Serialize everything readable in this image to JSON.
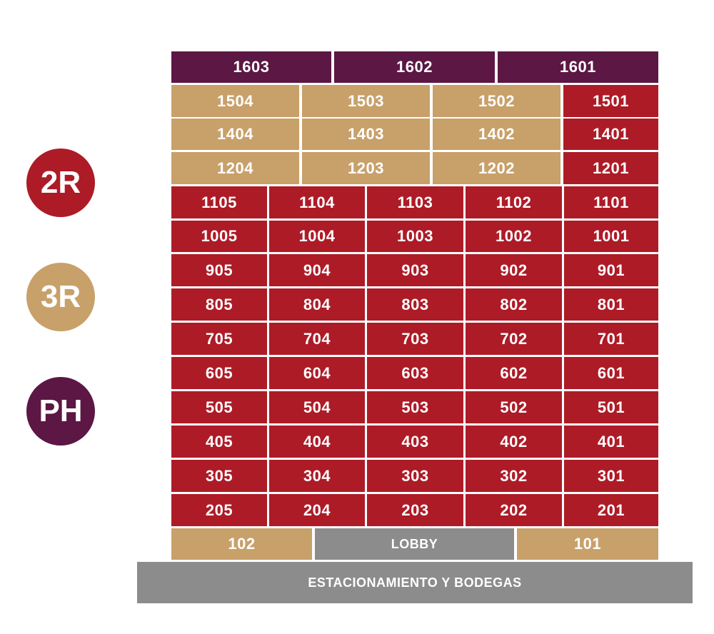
{
  "colors": {
    "2R": "#ad1b27",
    "3R": "#c8a06a",
    "PH": "#5c1744",
    "common": "#8c8c8c"
  },
  "legend": [
    {
      "label": "2R",
      "type": "2R"
    },
    {
      "label": "3R",
      "type": "3R"
    },
    {
      "label": "PH",
      "type": "PH"
    }
  ],
  "floors": [
    {
      "units": [
        {
          "label": "1603",
          "type": "PH"
        },
        {
          "label": "1602",
          "type": "PH"
        },
        {
          "label": "1601",
          "type": "PH"
        }
      ]
    },
    {
      "units": [
        {
          "label": "1504",
          "type": "3R"
        },
        {
          "label": "1503",
          "type": "3R"
        },
        {
          "label": "1502",
          "type": "3R"
        },
        {
          "label": "1501",
          "type": "2R"
        }
      ]
    },
    {
      "units": [
        {
          "label": "1404",
          "type": "3R"
        },
        {
          "label": "1403",
          "type": "3R"
        },
        {
          "label": "1402",
          "type": "3R"
        },
        {
          "label": "1401",
          "type": "2R"
        }
      ]
    },
    {
      "units": [
        {
          "label": "1204",
          "type": "3R"
        },
        {
          "label": "1203",
          "type": "3R"
        },
        {
          "label": "1202",
          "type": "3R"
        },
        {
          "label": "1201",
          "type": "2R"
        }
      ]
    },
    {
      "units": [
        {
          "label": "1105",
          "type": "2R"
        },
        {
          "label": "1104",
          "type": "2R"
        },
        {
          "label": "1103",
          "type": "2R"
        },
        {
          "label": "1102",
          "type": "2R"
        },
        {
          "label": "1101",
          "type": "2R"
        }
      ]
    },
    {
      "units": [
        {
          "label": "1005",
          "type": "2R"
        },
        {
          "label": "1004",
          "type": "2R"
        },
        {
          "label": "1003",
          "type": "2R"
        },
        {
          "label": "1002",
          "type": "2R"
        },
        {
          "label": "1001",
          "type": "2R"
        }
      ]
    },
    {
      "units": [
        {
          "label": "905",
          "type": "2R"
        },
        {
          "label": "904",
          "type": "2R"
        },
        {
          "label": "903",
          "type": "2R"
        },
        {
          "label": "902",
          "type": "2R"
        },
        {
          "label": "901",
          "type": "2R"
        }
      ]
    },
    {
      "units": [
        {
          "label": "805",
          "type": "2R"
        },
        {
          "label": "804",
          "type": "2R"
        },
        {
          "label": "803",
          "type": "2R"
        },
        {
          "label": "802",
          "type": "2R"
        },
        {
          "label": "801",
          "type": "2R"
        }
      ]
    },
    {
      "units": [
        {
          "label": "705",
          "type": "2R"
        },
        {
          "label": "704",
          "type": "2R"
        },
        {
          "label": "703",
          "type": "2R"
        },
        {
          "label": "702",
          "type": "2R"
        },
        {
          "label": "701",
          "type": "2R"
        }
      ]
    },
    {
      "units": [
        {
          "label": "605",
          "type": "2R"
        },
        {
          "label": "604",
          "type": "2R"
        },
        {
          "label": "603",
          "type": "2R"
        },
        {
          "label": "602",
          "type": "2R"
        },
        {
          "label": "601",
          "type": "2R"
        }
      ]
    },
    {
      "units": [
        {
          "label": "505",
          "type": "2R"
        },
        {
          "label": "504",
          "type": "2R"
        },
        {
          "label": "503",
          "type": "2R"
        },
        {
          "label": "502",
          "type": "2R"
        },
        {
          "label": "501",
          "type": "2R"
        }
      ]
    },
    {
      "units": [
        {
          "label": "405",
          "type": "2R"
        },
        {
          "label": "404",
          "type": "2R"
        },
        {
          "label": "403",
          "type": "2R"
        },
        {
          "label": "402",
          "type": "2R"
        },
        {
          "label": "401",
          "type": "2R"
        }
      ]
    },
    {
      "units": [
        {
          "label": "305",
          "type": "2R"
        },
        {
          "label": "304",
          "type": "2R"
        },
        {
          "label": "303",
          "type": "2R"
        },
        {
          "label": "302",
          "type": "2R"
        },
        {
          "label": "301",
          "type": "2R"
        }
      ]
    },
    {
      "units": [
        {
          "label": "205",
          "type": "2R"
        },
        {
          "label": "204",
          "type": "2R"
        },
        {
          "label": "203",
          "type": "2R"
        },
        {
          "label": "202",
          "type": "2R"
        },
        {
          "label": "201",
          "type": "2R"
        }
      ]
    },
    {
      "units": [
        {
          "label": "102",
          "type": "3R"
        },
        {
          "label": "LOBBY",
          "type": "common"
        },
        {
          "label": "101",
          "type": "3R"
        }
      ]
    }
  ],
  "parking": {
    "label": "ESTACIONAMIENTO Y BODEGAS"
  }
}
